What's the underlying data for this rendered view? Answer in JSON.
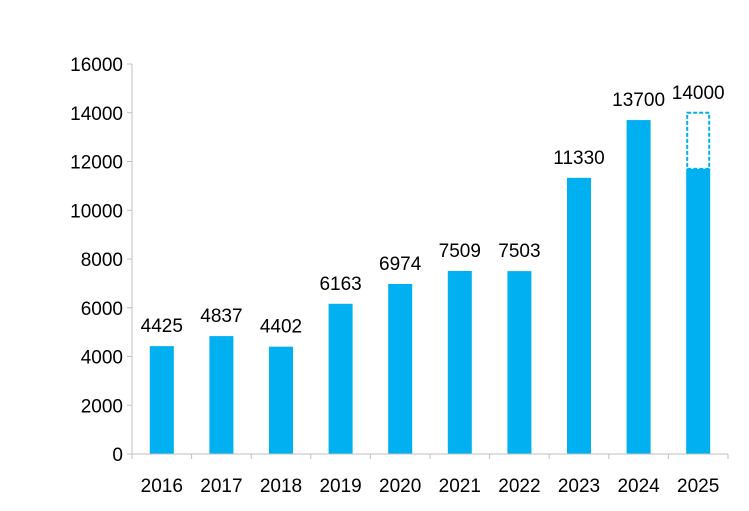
{
  "chart_data": {
    "type": "bar",
    "title": "",
    "xlabel": "",
    "ylabel": "",
    "ylim": [
      0,
      16000
    ],
    "yticks": [
      0,
      2000,
      4000,
      6000,
      8000,
      10000,
      12000,
      14000,
      16000
    ],
    "grid": false,
    "categories": [
      "2016",
      "2017",
      "2018",
      "2019",
      "2020",
      "2021",
      "2022",
      "2023",
      "2024",
      "2025"
    ],
    "values": [
      4425,
      4837,
      4402,
      6163,
      6974,
      7509,
      7503,
      11330,
      13700,
      14000
    ],
    "data_labels": [
      "4425",
      "4837",
      "4402",
      "6163",
      "6974",
      "7509",
      "7503",
      "11330",
      "13700",
      "14000"
    ],
    "partial_solid": {
      "category": "2025",
      "solid_value": 11700,
      "dashed_to": 14000
    },
    "bar_color": "#00B0F0"
  }
}
